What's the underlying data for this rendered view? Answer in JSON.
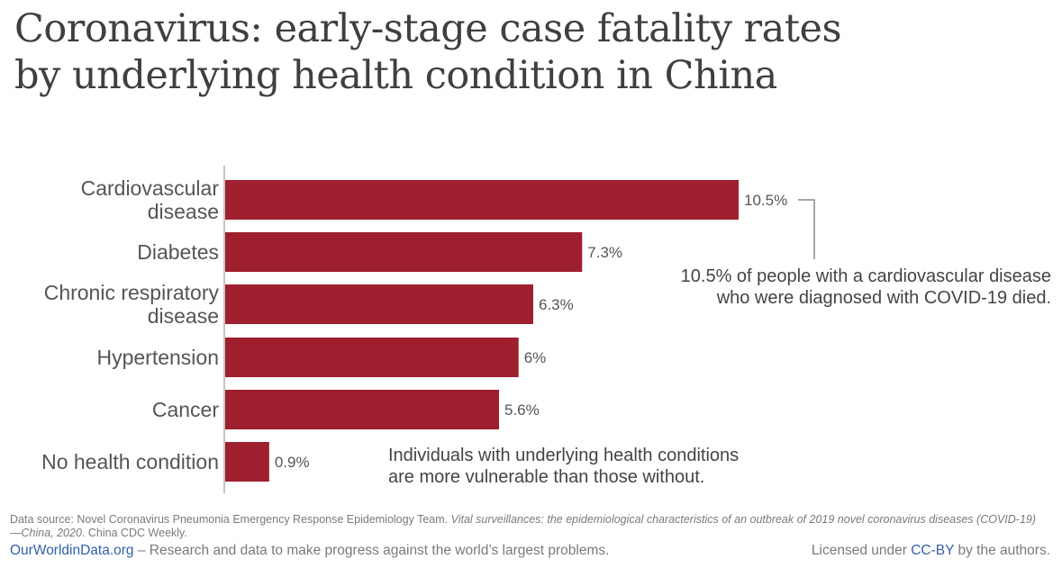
{
  "title": {
    "line1": "Coronavirus: early-stage case fatality rates",
    "line2": "by underlying health condition in China"
  },
  "chart_data": {
    "type": "bar",
    "orientation": "horizontal",
    "categories": [
      [
        "Cardiovascular",
        "disease"
      ],
      [
        "Diabetes"
      ],
      [
        "Chronic respiratory",
        "disease"
      ],
      [
        "Hypertension"
      ],
      [
        "Cancer"
      ],
      [
        "No health condition"
      ]
    ],
    "values": [
      10.5,
      7.3,
      6.3,
      6,
      5.6,
      0.9
    ],
    "value_labels": [
      "10.5%",
      "7.3%",
      "6.3%",
      "6%",
      "5.6%",
      "0.9%"
    ],
    "unit": "%",
    "xlim": [
      0,
      10.5
    ],
    "bar_color": "#9e1f2e",
    "annotations": [
      {
        "target": "Cardiovascular disease",
        "lines": [
          "10.5% of people with a cardiovascular disease",
          "who were diagnosed with COVID-19 died."
        ]
      },
      {
        "target": "chart",
        "lines": [
          "Individuals with underlying health conditions",
          "are more vulnerable than those without."
        ]
      }
    ]
  },
  "footer": {
    "source_prefix": "Data source: Novel Coronavirus Pneumonia Emergency Response Epidemiology Team. ",
    "source_title": "Vital surveillances: the epidemiological characteristics of an outbreak of 2019 novel coronavirus diseases (COVID-19)—China, 2020",
    "source_suffix": ". China CDC Weekly.",
    "brand": "OurWorldinData.org",
    "tagline": " – Research and data to make progress against the world’s largest problems.",
    "license_prefix": "Licensed under ",
    "license_link": "CC-BY",
    "license_suffix": " by the authors."
  },
  "colors": {
    "bar": "#9e1f2e",
    "title": "#3f3f3f",
    "text": "#555555",
    "link": "#3360a9"
  }
}
